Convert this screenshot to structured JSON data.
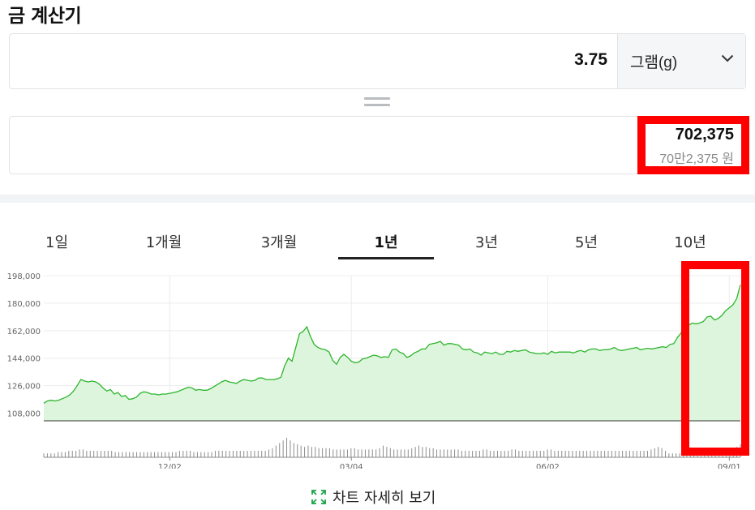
{
  "page": {
    "title": "금 계산기"
  },
  "calculator": {
    "amount": "3.75",
    "unit": "그램(g)",
    "result_value": "702,375",
    "result_korean": "70만2,375 원"
  },
  "period_tabs": [
    {
      "label": "1일",
      "active": false
    },
    {
      "label": "1개월",
      "active": false
    },
    {
      "label": "3개월",
      "active": false
    },
    {
      "label": "1년",
      "active": true
    },
    {
      "label": "3년",
      "active": false
    },
    {
      "label": "5년",
      "active": false
    },
    {
      "label": "10년",
      "active": false
    }
  ],
  "chart_data": {
    "type": "area",
    "title": "",
    "xlabel": "",
    "ylabel": "",
    "ylim": [
      100000,
      200000
    ],
    "y_ticks": [
      "198,000",
      "180,000",
      "162,000",
      "144,000",
      "126,000",
      "108,000"
    ],
    "y_tick_values": [
      198000,
      180000,
      162000,
      144000,
      126000,
      108000
    ],
    "x_tick_labels": [
      "12/02",
      "03/04",
      "06/02",
      "09/01"
    ],
    "x_tick_index": [
      34,
      83,
      136,
      185
    ],
    "baseline": 103000,
    "line_color": "#2db52d",
    "fill_color": "#dcf5dc",
    "series": [
      {
        "values": [
          114500,
          116000,
          116500,
          116000,
          116500,
          117500,
          118500,
          120000,
          122500,
          126000,
          130000,
          129000,
          128500,
          129000,
          128500,
          127000,
          124500,
          122500,
          123500,
          120500,
          121500,
          119000,
          119500,
          117000,
          117500,
          118500,
          121000,
          122000,
          121500,
          120500,
          120500,
          120000,
          120500,
          120500,
          121000,
          121500,
          122000,
          123000,
          124000,
          125000,
          124500,
          123000,
          123500,
          123000,
          123000,
          124000,
          125500,
          127000,
          128500,
          129500,
          128500,
          128000,
          127500,
          129000,
          130000,
          129500,
          129000,
          129500,
          131000,
          131000,
          130000,
          130000,
          130000,
          130500,
          131500,
          139000,
          144000,
          142000,
          151000,
          160000,
          161500,
          164500,
          158000,
          153000,
          151000,
          150000,
          149500,
          148000,
          142500,
          140000,
          144500,
          146500,
          144500,
          142000,
          141000,
          141500,
          143500,
          144000,
          145000,
          146000,
          145500,
          144500,
          145000,
          144500,
          149500,
          150000,
          148000,
          147000,
          144500,
          145500,
          147500,
          148500,
          150000,
          150000,
          153000,
          153500,
          154000,
          155000,
          152500,
          153500,
          153500,
          153000,
          152500,
          150000,
          149500,
          150000,
          148000,
          147500,
          146000,
          148000,
          147500,
          147000,
          148000,
          146500,
          146500,
          148500,
          148000,
          149000,
          148500,
          149000,
          149500,
          148000,
          147500,
          147000,
          147000,
          147500,
          146500,
          148500,
          147500,
          148000,
          148000,
          148000,
          148000,
          147500,
          148500,
          149000,
          148000,
          149500,
          150000,
          150000,
          149000,
          149500,
          149500,
          150000,
          151000,
          149500,
          149000,
          149500,
          150000,
          150500,
          151000,
          149500,
          150000,
          150500,
          150000,
          150500,
          151000,
          151500,
          151000,
          153000,
          153500,
          157500,
          160500,
          165500,
          165500,
          167000,
          166500,
          167000,
          168000,
          171000,
          171500,
          169000,
          170000,
          172000,
          175000,
          177000,
          179000,
          183000,
          192000
        ]
      }
    ],
    "volume": [
      3,
      3,
      3,
      3,
      4,
      4,
      4,
      5,
      5,
      5,
      6,
      6,
      5,
      5,
      5,
      5,
      5,
      5,
      5,
      5,
      4,
      4,
      4,
      4,
      4,
      4,
      4,
      4,
      4,
      4,
      4,
      4,
      4,
      4,
      4,
      4,
      4,
      4,
      5,
      5,
      5,
      5,
      4,
      4,
      4,
      4,
      4,
      4,
      5,
      5,
      5,
      5,
      5,
      5,
      5,
      5,
      5,
      5,
      5,
      5,
      5,
      5,
      5,
      6,
      7,
      9,
      11,
      13,
      15,
      13,
      11,
      10,
      9,
      8,
      9,
      8,
      8,
      7,
      7,
      7,
      7,
      6,
      6,
      6,
      6,
      6,
      7,
      7,
      6,
      6,
      6,
      6,
      6,
      6,
      7,
      9,
      8,
      7,
      6,
      6,
      6,
      6,
      6,
      7,
      8,
      9,
      8,
      8,
      7,
      7,
      6,
      6,
      6,
      6,
      6,
      6,
      6,
      5,
      5,
      5,
      5,
      5,
      5,
      6,
      6,
      5,
      5,
      5,
      5,
      5,
      5,
      6,
      6,
      5,
      5,
      5,
      5,
      5,
      5,
      5,
      5,
      6,
      6,
      5,
      5,
      5,
      5,
      5,
      5,
      5,
      5,
      5,
      5,
      5,
      5,
      5,
      5,
      5,
      5,
      5,
      5,
      5,
      5,
      5,
      5,
      5,
      5,
      5,
      5,
      5,
      6,
      7,
      8,
      7,
      5,
      3,
      3,
      3,
      3,
      3,
      3,
      3,
      3,
      3,
      3,
      3,
      3,
      3,
      3,
      3,
      3,
      3,
      4,
      5,
      8,
      10
    ]
  },
  "detail_link": {
    "label": "차트 자세히 보기"
  }
}
